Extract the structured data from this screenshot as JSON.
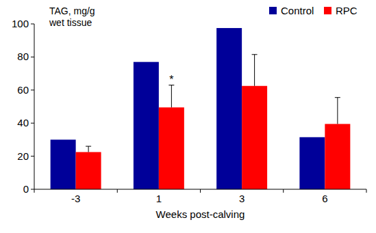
{
  "chart_data": {
    "type": "bar",
    "y_label": "TAG, mg/g\nwet tissue",
    "x_label": "Weeks post-calving",
    "categories": [
      "-3",
      "1",
      "3",
      "6"
    ],
    "series": [
      {
        "name": "Control",
        "color": "#000099",
        "values": [
          30,
          77,
          97.5,
          31.5
        ]
      },
      {
        "name": "RPC",
        "color": "#ff0000",
        "values": [
          22.5,
          49.5,
          62.5,
          39.5
        ],
        "errors": [
          3.5,
          13.5,
          19,
          16
        ]
      }
    ],
    "annotations": [
      {
        "text": "*",
        "category": "1",
        "series": "RPC"
      }
    ],
    "ylim": [
      0,
      100
    ],
    "yticks": [
      0,
      20,
      40,
      60,
      80,
      100
    ],
    "grid": false,
    "legend": "top-right"
  }
}
